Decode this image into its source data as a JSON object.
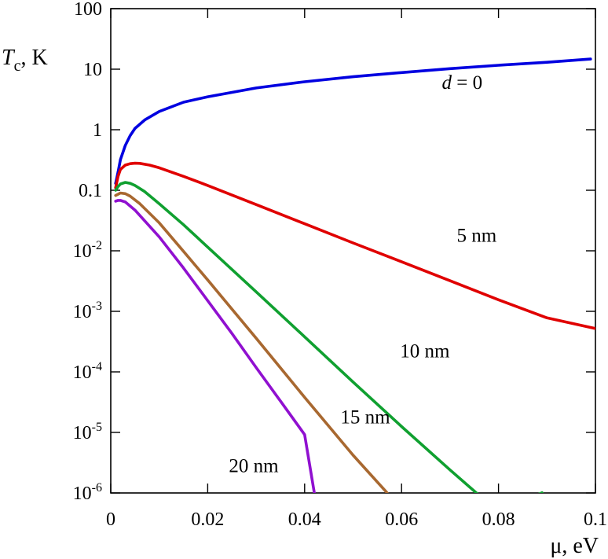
{
  "chart_data": {
    "type": "line",
    "title": "",
    "xlabel": "μ, eV",
    "ylabel_symbol": "T",
    "ylabel_subscript": "c",
    "ylabel_unit": ", K",
    "y_scale": "log",
    "xlim": [
      0,
      0.1
    ],
    "ylim": [
      1e-06,
      100
    ],
    "grid": false,
    "legend": "none",
    "x_ticks": [
      {
        "value": 0,
        "label": "0"
      },
      {
        "value": 0.02,
        "label": "0.02"
      },
      {
        "value": 0.04,
        "label": "0.04"
      },
      {
        "value": 0.06,
        "label": "0.06"
      },
      {
        "value": 0.08,
        "label": "0.08"
      },
      {
        "value": 0.1,
        "label": "0.1"
      }
    ],
    "y_ticks": [
      {
        "value": 100,
        "label": "100",
        "exp": ""
      },
      {
        "value": 10,
        "label": "10",
        "exp": ""
      },
      {
        "value": 1,
        "label": "1",
        "exp": ""
      },
      {
        "value": 0.1,
        "label": "0.1",
        "exp": ""
      },
      {
        "value": 0.01,
        "label": "10",
        "exp": "-2"
      },
      {
        "value": 0.001,
        "label": "10",
        "exp": "-3"
      },
      {
        "value": 0.0001,
        "label": "10",
        "exp": "-4"
      },
      {
        "value": 1e-05,
        "label": "10",
        "exp": "-5"
      },
      {
        "value": 1e-06,
        "label": "10",
        "exp": "-6"
      }
    ],
    "series": [
      {
        "name_prefix": "d",
        "name": " = 0",
        "color": "#0000e0",
        "label_at": [
          0.0725,
          6.0
        ],
        "points": [
          [
            0.001,
            0.13
          ],
          [
            0.0015,
            0.2
          ],
          [
            0.002,
            0.32
          ],
          [
            0.003,
            0.55
          ],
          [
            0.004,
            0.8
          ],
          [
            0.005,
            1.05
          ],
          [
            0.007,
            1.45
          ],
          [
            0.01,
            2.0
          ],
          [
            0.015,
            2.85
          ],
          [
            0.02,
            3.5
          ],
          [
            0.03,
            4.9
          ],
          [
            0.04,
            6.2
          ],
          [
            0.05,
            7.5
          ],
          [
            0.06,
            8.8
          ],
          [
            0.07,
            10.2
          ],
          [
            0.08,
            11.6
          ],
          [
            0.09,
            13.0
          ],
          [
            0.099,
            14.7
          ]
        ]
      },
      {
        "name": "5 nm",
        "color": "#e00000",
        "label_at": [
          0.0755,
          0.018
        ],
        "points": [
          [
            0.001,
            0.11
          ],
          [
            0.0015,
            0.17
          ],
          [
            0.002,
            0.22
          ],
          [
            0.003,
            0.26
          ],
          [
            0.004,
            0.275
          ],
          [
            0.005,
            0.28
          ],
          [
            0.006,
            0.278
          ],
          [
            0.008,
            0.26
          ],
          [
            0.01,
            0.235
          ],
          [
            0.015,
            0.17
          ],
          [
            0.02,
            0.12
          ],
          [
            0.03,
            0.058
          ],
          [
            0.04,
            0.028
          ],
          [
            0.05,
            0.0135
          ],
          [
            0.06,
            0.0066
          ],
          [
            0.07,
            0.0032
          ],
          [
            0.08,
            0.00155
          ],
          [
            0.09,
            0.00078
          ],
          [
            0.1,
            0.00052
          ]
        ]
      },
      {
        "name": "10 nm",
        "color": "#10a030",
        "label_at": [
          0.0648,
          0.00022
        ],
        "points": [
          [
            0.001,
            0.1
          ],
          [
            0.0015,
            0.115
          ],
          [
            0.002,
            0.127
          ],
          [
            0.003,
            0.135
          ],
          [
            0.004,
            0.13
          ],
          [
            0.005,
            0.12
          ],
          [
            0.007,
            0.095
          ],
          [
            0.01,
            0.06
          ],
          [
            0.015,
            0.027
          ],
          [
            0.02,
            0.0115
          ],
          [
            0.03,
            0.0021
          ],
          [
            0.04,
            0.00038
          ],
          [
            0.05,
            6.8e-05
          ],
          [
            0.06,
            1.25e-05
          ],
          [
            0.07,
            2.4e-06
          ],
          [
            0.08,
            4.8e-07
          ],
          [
            0.089,
            1.01e-06
          ]
        ]
      },
      {
        "name": "15 nm",
        "color": "#a86830",
        "label_at": [
          0.0525,
          1.8e-05
        ],
        "points": [
          [
            0.001,
            0.082
          ],
          [
            0.002,
            0.09
          ],
          [
            0.003,
            0.088
          ],
          [
            0.004,
            0.08
          ],
          [
            0.006,
            0.06
          ],
          [
            0.01,
            0.029
          ],
          [
            0.015,
            0.0098
          ],
          [
            0.02,
            0.0033
          ],
          [
            0.03,
            0.00036
          ],
          [
            0.04,
            3.8e-05
          ],
          [
            0.05,
            4.2e-06
          ],
          [
            0.057,
            1.01e-06
          ]
        ]
      },
      {
        "name": "20 nm",
        "color": "#9010d0",
        "label_at": [
          0.0295,
          2.8e-06
        ],
        "points": [
          [
            0.001,
            0.066
          ],
          [
            0.0015,
            0.068
          ],
          [
            0.002,
            0.068
          ],
          [
            0.003,
            0.064
          ],
          [
            0.005,
            0.047
          ],
          [
            0.01,
            0.017
          ],
          [
            0.015,
            0.0052
          ],
          [
            0.02,
            0.0015
          ],
          [
            0.025,
            0.00043
          ],
          [
            0.03,
            0.000118
          ],
          [
            0.035,
            3.3e-05
          ],
          [
            0.04,
            9.2e-06
          ],
          [
            0.042,
            1.01e-06
          ]
        ]
      }
    ]
  }
}
